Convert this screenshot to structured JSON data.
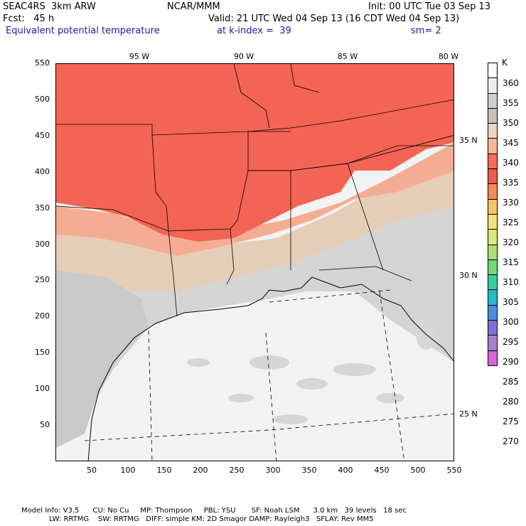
{
  "header": {
    "line1_left": "SEAC4RS  3km ARW",
    "line1_mid": "NCAR/MMM",
    "line1_right": "Init: 00 UTC Tue 03 Sep 13",
    "line2_left": "Fcst:   45 h",
    "line2_right": "Valid: 21 UTC Wed 04 Sep 13 (16 CDT Wed 04 Sep 13)",
    "line3_left": "Equivalent potential temperature",
    "line3_mid": "at k-index =  39",
    "line3_right": "sm= 2"
  },
  "axes": {
    "x_ticks": [
      "50",
      "100",
      "150",
      "200",
      "250",
      "300",
      "350",
      "400",
      "450",
      "500",
      "550"
    ],
    "y_ticks": [
      "550",
      "500",
      "450",
      "400",
      "350",
      "300",
      "250",
      "200",
      "150",
      "100",
      "50"
    ],
    "lon_labels": [
      "95 W",
      "90 W",
      "85 W",
      "80 W"
    ],
    "lat_labels": [
      "35 N",
      "30 N",
      "25 N"
    ],
    "xlim": [
      0,
      550
    ],
    "ylim": [
      0,
      550
    ]
  },
  "colorbar": {
    "unit": "K",
    "labels": [
      "360",
      "355",
      "350",
      "345",
      "340",
      "335",
      "330",
      "325",
      "320",
      "315",
      "310",
      "305",
      "300",
      "295",
      "290",
      "285",
      "280",
      "275",
      "270"
    ],
    "colors": [
      "#ffffff",
      "#ececec",
      "#cfcfcf",
      "#c8c0b8",
      "#ead5c0",
      "#f6b59a",
      "#f26d55",
      "#f25a4a",
      "#f48a55",
      "#f6c56a",
      "#f3e27a",
      "#d8ea78",
      "#a9e070",
      "#6fd97a",
      "#35cfa0",
      "#27b8c6",
      "#4e8ee0",
      "#7f70d8",
      "#a77fc9",
      "#d765d5"
    ],
    "colors_note": ""
  },
  "footer": {
    "line1": "Model Info: V3.5      CU: No Cu     MP: Thompson     PBL: YSU       SF: Noah LSM      3.0 km   39 levels   18 sec",
    "line2": "LW: RRTMG    SW: RRTMG   DIFF: simple KM: 2D Smagor DAMP: Rayleigh3   SFLAY: Rev MM5"
  }
}
